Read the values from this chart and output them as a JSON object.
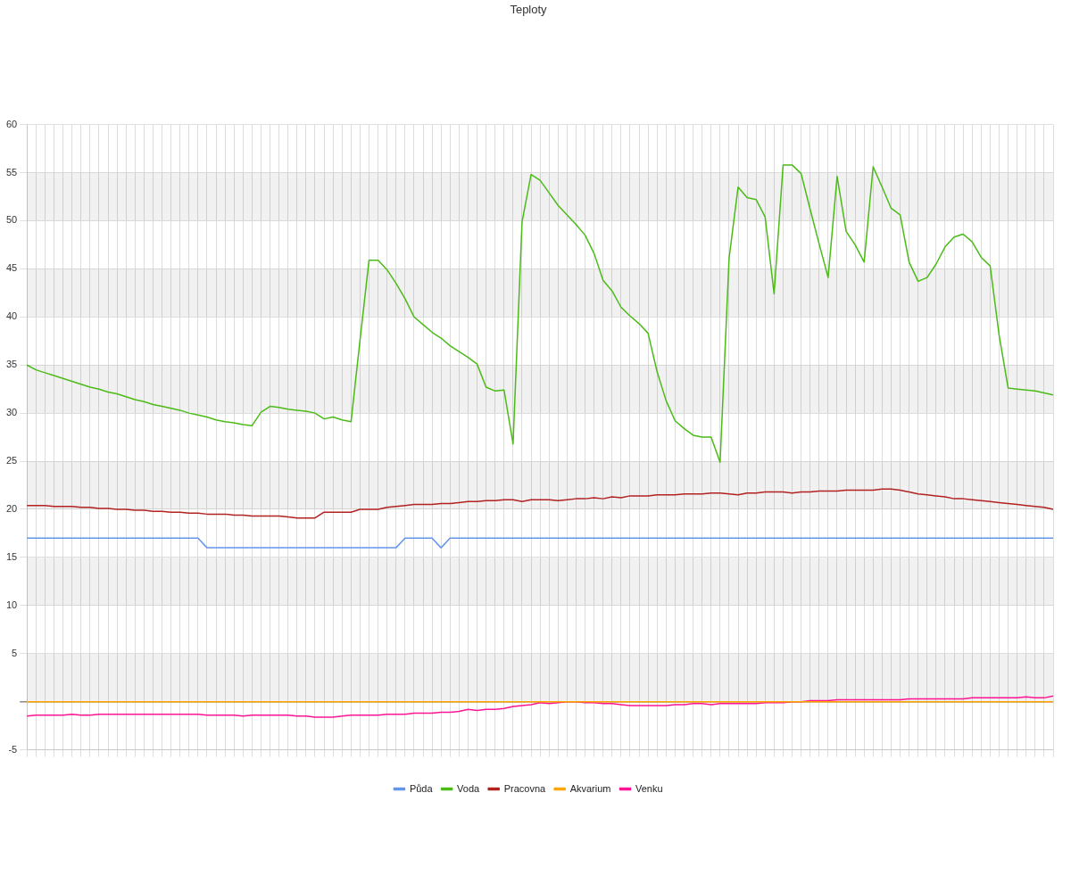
{
  "chart_data": {
    "type": "line",
    "title": "Teploty",
    "categories": [
      null,
      null,
      null,
      null,
      null,
      null,
      null,
      null,
      null,
      null,
      null,
      null,
      null,
      null,
      null,
      null,
      null,
      null,
      null,
      null,
      null,
      null,
      null,
      null,
      null,
      null,
      null,
      null,
      null,
      null,
      null,
      null,
      null,
      null,
      null,
      null,
      null,
      null,
      null,
      null,
      null,
      null,
      null,
      null,
      null,
      null,
      null,
      null,
      null,
      null,
      null,
      null,
      null,
      null,
      null,
      null,
      null,
      null,
      null,
      null,
      null,
      null,
      null,
      null,
      null,
      null,
      null,
      null,
      null,
      null,
      null,
      null,
      null,
      null,
      null,
      null,
      null,
      null,
      null,
      null,
      null,
      null,
      null,
      null,
      null,
      null,
      null,
      null,
      null,
      null,
      null,
      null,
      null,
      null,
      null,
      null,
      null,
      null,
      null,
      null,
      null,
      null,
      null,
      null,
      null,
      null,
      null,
      null,
      null,
      null,
      null,
      null,
      null,
      null,
      null
    ],
    "series": [
      {
        "name": "Půda",
        "color": "#6495ed",
        "values": [
          17,
          17,
          17,
          17,
          17,
          17,
          17,
          17,
          17,
          17,
          17,
          17,
          17,
          17,
          17,
          17,
          17,
          17,
          17,
          17,
          16,
          16,
          16,
          16,
          16,
          16,
          16,
          16,
          16,
          16,
          16,
          16,
          16,
          16,
          16,
          16,
          16,
          16,
          16,
          16,
          16,
          16,
          17,
          17,
          17,
          17,
          16,
          17,
          17,
          17,
          17,
          17,
          17,
          17,
          17,
          17,
          17,
          17,
          17,
          17,
          17,
          17,
          17,
          17,
          17,
          17,
          17,
          17,
          17,
          17,
          17,
          17,
          17,
          17,
          17,
          17,
          17,
          17,
          17,
          17,
          17,
          17,
          17,
          17,
          17,
          17,
          17,
          17,
          17,
          17,
          17,
          17,
          17,
          17,
          17,
          17,
          17,
          17,
          17,
          17,
          17,
          17,
          17,
          17,
          17,
          17,
          17,
          17,
          17,
          17,
          17,
          17,
          17,
          17,
          17
        ]
      },
      {
        "name": "Voda",
        "color": "#4cbb17",
        "values": [
          35.0,
          34.5,
          34.2,
          33.9,
          33.6,
          33.3,
          33.0,
          32.7,
          32.5,
          32.2,
          32.0,
          31.7,
          31.4,
          31.2,
          30.9,
          30.7,
          30.5,
          30.3,
          30.0,
          29.8,
          29.6,
          29.3,
          29.1,
          29.0,
          28.8,
          28.7,
          30.1,
          30.7,
          30.6,
          30.4,
          30.3,
          30.2,
          30.0,
          29.4,
          29.6,
          29.3,
          29.1,
          37.6,
          45.9,
          45.9,
          44.9,
          43.5,
          41.9,
          40.0,
          39.2,
          38.4,
          37.8,
          37.0,
          36.4,
          35.8,
          35.1,
          32.7,
          32.3,
          32.4,
          26.8,
          49.9,
          54.8,
          54.2,
          52.9,
          51.6,
          50.6,
          49.6,
          48.5,
          46.6,
          43.8,
          42.7,
          41.0,
          40.1,
          39.3,
          38.3,
          34.3,
          31.3,
          29.2,
          28.4,
          27.7,
          27.5,
          27.5,
          24.9,
          46.1,
          53.5,
          52.4,
          52.2,
          50.4,
          42.4,
          55.8,
          55.8,
          54.9,
          51.2,
          47.6,
          44.1,
          54.6,
          48.9,
          47.5,
          45.7,
          55.6,
          53.5,
          51.3,
          50.6,
          45.7,
          43.7,
          44.1,
          45.5,
          47.3,
          48.3,
          48.6,
          47.8,
          46.2,
          45.3,
          38.1,
          32.6,
          32.5,
          32.4,
          32.3,
          32.1,
          31.9
        ]
      },
      {
        "name": "Pracovna",
        "color": "#b22222",
        "values": [
          20.4,
          20.4,
          20.4,
          20.3,
          20.3,
          20.3,
          20.2,
          20.2,
          20.1,
          20.1,
          20.0,
          20.0,
          19.9,
          19.9,
          19.8,
          19.8,
          19.7,
          19.7,
          19.6,
          19.6,
          19.5,
          19.5,
          19.5,
          19.4,
          19.4,
          19.3,
          19.3,
          19.3,
          19.3,
          19.2,
          19.1,
          19.1,
          19.1,
          19.7,
          19.7,
          19.7,
          19.7,
          20.0,
          20.0,
          20.0,
          20.2,
          20.3,
          20.4,
          20.5,
          20.5,
          20.5,
          20.6,
          20.6,
          20.7,
          20.8,
          20.8,
          20.9,
          20.9,
          21.0,
          21.0,
          20.8,
          21.0,
          21.0,
          21.0,
          20.9,
          21.0,
          21.1,
          21.1,
          21.2,
          21.1,
          21.3,
          21.2,
          21.4,
          21.4,
          21.4,
          21.5,
          21.5,
          21.5,
          21.6,
          21.6,
          21.6,
          21.7,
          21.7,
          21.6,
          21.5,
          21.7,
          21.7,
          21.8,
          21.8,
          21.8,
          21.7,
          21.8,
          21.8,
          21.9,
          21.9,
          21.9,
          22.0,
          22.0,
          22.0,
          22.0,
          22.1,
          22.1,
          22.0,
          21.8,
          21.6,
          21.5,
          21.4,
          21.3,
          21.1,
          21.1,
          21.0,
          20.9,
          20.8,
          20.7,
          20.6,
          20.5,
          20.4,
          20.3,
          20.2,
          20.0
        ]
      },
      {
        "name": "Akvarium",
        "color": "#ffa500",
        "values": [
          0,
          0,
          0,
          0,
          0,
          0,
          0,
          0,
          0,
          0,
          0,
          0,
          0,
          0,
          0,
          0,
          0,
          0,
          0,
          0,
          0,
          0,
          0,
          0,
          0,
          0,
          0,
          0,
          0,
          0,
          0,
          0,
          0,
          0,
          0,
          0,
          0,
          0,
          0,
          0,
          0,
          0,
          0,
          0,
          0,
          0,
          0,
          0,
          0,
          0,
          0,
          0,
          0,
          0,
          0,
          0,
          0,
          0,
          0,
          0,
          0,
          0,
          0,
          0,
          0,
          0,
          0,
          0,
          0,
          0,
          0,
          0,
          0,
          0,
          0,
          0,
          0,
          0,
          0,
          0,
          0,
          0,
          0,
          0,
          0,
          0,
          0,
          0,
          0,
          0,
          0,
          0,
          0,
          0,
          0,
          0,
          0,
          0,
          0,
          0,
          0,
          0,
          0,
          0,
          0,
          0,
          0,
          0,
          0,
          0,
          0,
          0,
          0,
          0,
          0
        ]
      },
      {
        "name": "Venku",
        "color": "#ff1493",
        "values": [
          -1.5,
          -1.4,
          -1.4,
          -1.4,
          -1.4,
          -1.3,
          -1.4,
          -1.4,
          -1.3,
          -1.3,
          -1.3,
          -1.3,
          -1.3,
          -1.3,
          -1.3,
          -1.3,
          -1.3,
          -1.3,
          -1.3,
          -1.3,
          -1.4,
          -1.4,
          -1.4,
          -1.4,
          -1.5,
          -1.4,
          -1.4,
          -1.4,
          -1.4,
          -1.4,
          -1.5,
          -1.5,
          -1.6,
          -1.6,
          -1.6,
          -1.5,
          -1.4,
          -1.4,
          -1.4,
          -1.4,
          -1.3,
          -1.3,
          -1.3,
          -1.2,
          -1.2,
          -1.2,
          -1.1,
          -1.1,
          -1.0,
          -0.8,
          -0.9,
          -0.8,
          -0.8,
          -0.7,
          -0.5,
          -0.4,
          -0.3,
          -0.1,
          -0.2,
          -0.1,
          0,
          0,
          -0.1,
          -0.1,
          -0.2,
          -0.2,
          -0.3,
          -0.4,
          -0.4,
          -0.4,
          -0.4,
          -0.4,
          -0.3,
          -0.3,
          -0.2,
          -0.2,
          -0.3,
          -0.2,
          -0.2,
          -0.2,
          -0.2,
          -0.2,
          -0.1,
          -0.1,
          -0.1,
          0,
          0,
          0.1,
          0.1,
          0.1,
          0.2,
          0.2,
          0.2,
          0.2,
          0.2,
          0.2,
          0.2,
          0.2,
          0.3,
          0.3,
          0.3,
          0.3,
          0.3,
          0.3,
          0.3,
          0.4,
          0.4,
          0.4,
          0.4,
          0.4,
          0.4,
          0.5,
          0.4,
          0.4,
          0.6
        ]
      }
    ],
    "ylim": [
      -5,
      60
    ],
    "yticks": [
      -5,
      {
        "value": 0,
        "label": null
      },
      5,
      10,
      15,
      20,
      25,
      30,
      35,
      40,
      45,
      50,
      55,
      60
    ],
    "grid": true,
    "legend": "bottom",
    "marker": "none",
    "line_style": "solid"
  }
}
